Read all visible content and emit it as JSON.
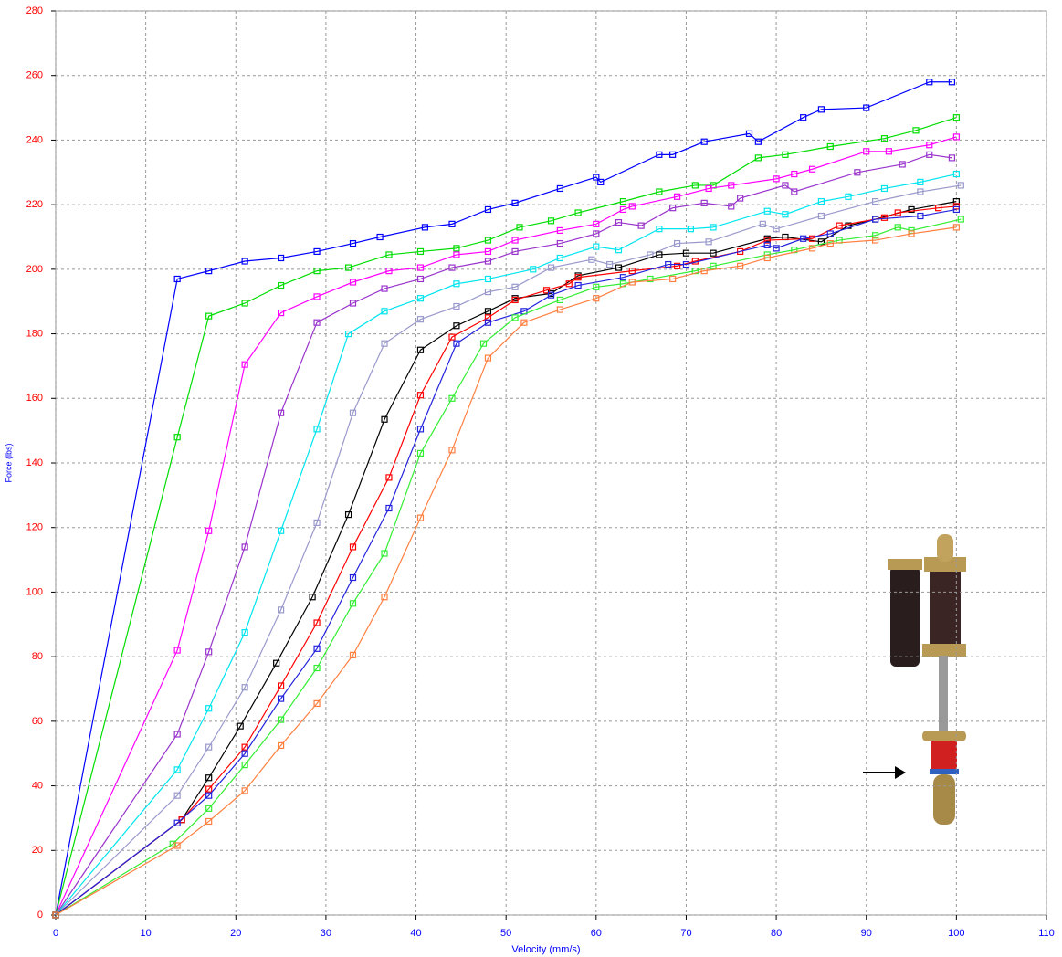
{
  "chart_data": {
    "type": "line",
    "x_label": "Velocity (mm/s)",
    "y_label": "Force (lbs)",
    "xlim": [
      0,
      110
    ],
    "xticks": [
      0,
      10,
      20,
      30,
      40,
      50,
      60,
      70,
      80,
      90,
      100,
      110
    ],
    "ylim": [
      0,
      280
    ],
    "yticks": [
      0,
      20,
      40,
      60,
      80,
      100,
      120,
      140,
      160,
      180,
      200,
      220,
      240,
      260,
      280
    ],
    "grid": true,
    "x_tick_color": "#0000ff",
    "y_tick_color": "#ff0000",
    "axis_label_color": "#0000ff",
    "series": [
      {
        "color": "#0000ff",
        "x": [
          0,
          13.5,
          17,
          21,
          25,
          29,
          33,
          36,
          41,
          44,
          48,
          51,
          56,
          60,
          60.5,
          67,
          68.5,
          72,
          77,
          78,
          83,
          85,
          90,
          97,
          99.5
        ],
        "values": [
          0,
          197,
          199.5,
          202.5,
          203.5,
          205.5,
          208,
          210,
          213,
          214,
          218.5,
          220.5,
          225,
          228.5,
          227,
          235.5,
          235.5,
          239.5,
          242,
          239.5,
          247,
          249.5,
          250,
          258,
          258
        ]
      },
      {
        "color": "#00dd00",
        "x": [
          0,
          13.5,
          17,
          21,
          25,
          29,
          32.5,
          37,
          40.5,
          44.5,
          48,
          51.5,
          55,
          58,
          63,
          67,
          71,
          73,
          78,
          81,
          86,
          92,
          95.5,
          100
        ],
        "values": [
          0,
          148,
          185.5,
          189.5,
          195,
          199.5,
          200.5,
          204.5,
          205.5,
          206.5,
          209,
          213,
          215,
          217.5,
          221,
          224,
          226,
          226,
          234.5,
          235.5,
          238,
          240.5,
          243,
          247
        ]
      },
      {
        "color": "#ff00ff",
        "x": [
          0,
          13.5,
          17,
          21,
          25,
          29,
          33,
          37,
          40.5,
          44.5,
          48,
          51,
          56,
          60,
          63,
          64,
          69,
          72.5,
          75,
          80,
          82,
          84,
          90,
          92.5,
          97,
          100
        ],
        "values": [
          0,
          82,
          119,
          170.5,
          186.5,
          191.5,
          196,
          199.5,
          200.5,
          204.5,
          205.5,
          209,
          212,
          214,
          218.5,
          219.5,
          222.5,
          225,
          226,
          228,
          229.5,
          231,
          236.5,
          236.5,
          238.5,
          241
        ]
      },
      {
        "color": "#9933cc",
        "x": [
          0,
          13.5,
          17,
          21,
          25,
          29,
          33,
          36.5,
          40.5,
          44,
          48,
          51,
          56,
          60,
          62.5,
          65,
          68.5,
          72,
          75,
          76,
          81,
          82,
          89,
          94,
          97,
          99.5
        ],
        "values": [
          0,
          56,
          81.5,
          114,
          155.5,
          183.5,
          189.5,
          194,
          197,
          200.5,
          202.5,
          205.5,
          208,
          211,
          214.5,
          213.5,
          219,
          220.5,
          219.5,
          222,
          226,
          224,
          230,
          232.5,
          235.5,
          234.5
        ]
      },
      {
        "color": "#00e5ee",
        "x": [
          0,
          13.5,
          17,
          21,
          25,
          29,
          32.5,
          36.5,
          40.5,
          44.5,
          48,
          53,
          56,
          60,
          62.5,
          67,
          70.5,
          73,
          79,
          81,
          85,
          88,
          92,
          96,
          100
        ],
        "values": [
          0,
          45,
          64,
          87.5,
          119,
          150.5,
          180,
          187,
          191,
          195.5,
          197,
          200,
          203.5,
          207,
          206,
          212.5,
          212.5,
          213,
          218,
          217,
          221,
          222.5,
          225,
          227,
          229.5
        ]
      },
      {
        "color": "#9999cc",
        "x": [
          0,
          13.5,
          17,
          21,
          25,
          29,
          33,
          36.5,
          40.5,
          44.5,
          48,
          51,
          55,
          59.5,
          61.5,
          66,
          69,
          72.5,
          78.5,
          80,
          85,
          91,
          96,
          100.5
        ],
        "values": [
          0,
          37,
          52,
          70.5,
          94.5,
          121.5,
          155.5,
          177,
          184.5,
          188.5,
          193,
          194.5,
          200.5,
          203,
          201.5,
          204.5,
          208,
          208.5,
          214,
          212.5,
          216.5,
          221,
          224,
          226
        ]
      },
      {
        "color": "#000000",
        "x": [
          0,
          14,
          17,
          20.5,
          24.5,
          28.5,
          32.5,
          36.5,
          40.5,
          44.5,
          48,
          51,
          55,
          58,
          62.5,
          67,
          70,
          73,
          79,
          81,
          85,
          88,
          91,
          95,
          100
        ],
        "values": [
          0,
          29.5,
          42.5,
          58.5,
          78,
          98.5,
          124,
          153.5,
          175,
          182.5,
          187,
          191,
          192.5,
          198,
          200.5,
          204.5,
          205,
          205,
          209.5,
          210,
          208.5,
          213.5,
          215.5,
          218.5,
          221
        ]
      },
      {
        "color": "#ff0000",
        "x": [
          0,
          14,
          17,
          21,
          25,
          29,
          33,
          37,
          40.5,
          44,
          48,
          51,
          54.5,
          57,
          58,
          64,
          69,
          71,
          76,
          79,
          84,
          87,
          92,
          93.5,
          98,
          100
        ],
        "values": [
          0,
          29.5,
          39,
          52,
          71,
          90.5,
          114,
          135.5,
          161,
          179,
          185,
          190.5,
          193.5,
          195.5,
          197.5,
          199.5,
          201,
          202.5,
          205.5,
          209,
          209.5,
          213.5,
          216,
          217.5,
          219,
          219.5
        ]
      },
      {
        "color": "#2222dd",
        "x": [
          0,
          13.5,
          17,
          21,
          25,
          29,
          33,
          37,
          40.5,
          44.5,
          48,
          52,
          55,
          58,
          63,
          68,
          70,
          79,
          80,
          83,
          86,
          91,
          96,
          100
        ],
        "values": [
          0,
          28.5,
          37,
          50,
          67,
          82.5,
          104.5,
          126,
          150.5,
          177,
          183.5,
          187,
          192,
          195,
          197.5,
          201.5,
          201.5,
          207.5,
          206.5,
          209.5,
          211,
          215.5,
          216.5,
          218.5
        ]
      },
      {
        "color": "#33ee33",
        "x": [
          0,
          13,
          17,
          21,
          25,
          29,
          33,
          36.5,
          40.5,
          44,
          47.5,
          51,
          56,
          60,
          63,
          66,
          71,
          73,
          79,
          82,
          87,
          91,
          93.5,
          95,
          100.5
        ],
        "values": [
          0,
          22,
          33,
          46.5,
          60.5,
          76.5,
          96.5,
          112,
          143,
          160,
          177,
          185,
          190.5,
          194.5,
          195.5,
          197,
          199.5,
          201,
          204.5,
          206,
          209,
          210.5,
          213,
          212,
          215.5
        ]
      },
      {
        "color": "#ff7f3f",
        "x": [
          0,
          13.5,
          17,
          21,
          25,
          29,
          33,
          36.5,
          40.5,
          44,
          48,
          52,
          56,
          60,
          64,
          68.5,
          72,
          76,
          79,
          84,
          86,
          91,
          95,
          100
        ],
        "values": [
          0,
          21.5,
          29,
          38.5,
          52.5,
          65.5,
          80.5,
          98.5,
          123,
          144,
          172.5,
          183.5,
          187.5,
          191,
          196,
          197,
          199.5,
          201,
          203.5,
          206.5,
          208,
          209,
          211,
          213
        ]
      }
    ]
  }
}
